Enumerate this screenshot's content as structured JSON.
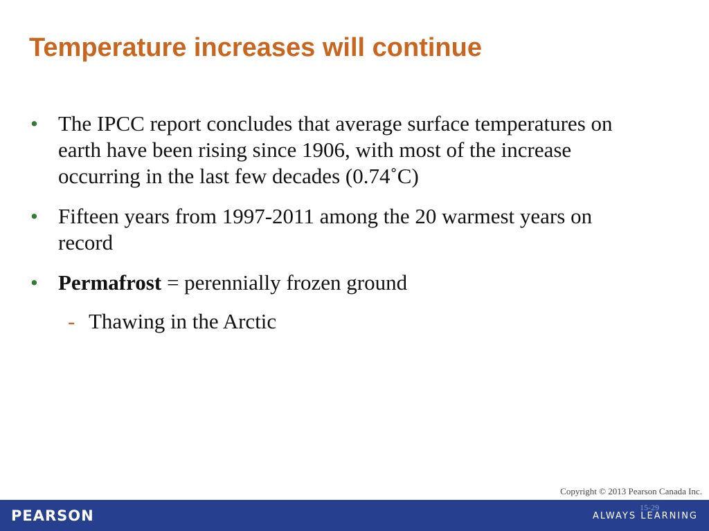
{
  "title": "Temperature increases will continue",
  "bullets": [
    {
      "text": "The IPCC report concludes that average surface temperatures on earth have been rising since 1906, with most of the increase occurring in the last few decades (0.74˚C)"
    },
    {
      "text": "Fifteen years from 1997-2011 among the 20 warmest years on record"
    },
    {
      "bold": "Permafrost",
      "text": " = perennially frozen ground",
      "sub": [
        "Thawing in the Arctic"
      ]
    }
  ],
  "footer": {
    "copyright": "Copyright © 2013 Pearson Canada Inc.",
    "page": "15-29",
    "brand": "PEARSON",
    "tagline": "ALWAYS LEARNING"
  }
}
